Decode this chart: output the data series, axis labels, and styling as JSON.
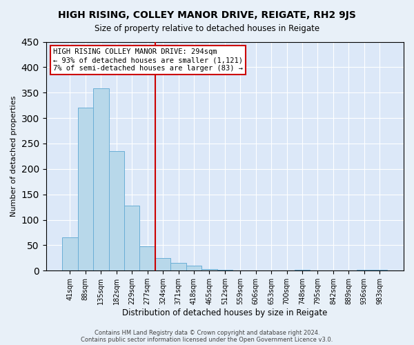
{
  "title": "HIGH RISING, COLLEY MANOR DRIVE, REIGATE, RH2 9JS",
  "subtitle": "Size of property relative to detached houses in Reigate",
  "xlabel": "Distribution of detached houses by size in Reigate",
  "ylabel": "Number of detached properties",
  "bar_labels": [
    "41sqm",
    "88sqm",
    "135sqm",
    "182sqm",
    "229sqm",
    "277sqm",
    "324sqm",
    "371sqm",
    "418sqm",
    "465sqm",
    "512sqm",
    "559sqm",
    "606sqm",
    "653sqm",
    "700sqm",
    "748sqm",
    "795sqm",
    "842sqm",
    "889sqm",
    "936sqm",
    "983sqm"
  ],
  "bar_values": [
    65,
    320,
    358,
    235,
    128,
    48,
    25,
    15,
    10,
    3,
    1,
    0,
    0,
    0,
    0,
    1,
    0,
    0,
    0,
    1,
    1
  ],
  "bar_color": "#b8d8ea",
  "bar_edge_color": "#6aaed6",
  "vline_x": 5.5,
  "vline_color": "#cc0000",
  "annotation_title": "HIGH RISING COLLEY MANOR DRIVE: 294sqm",
  "annotation_line1": "← 93% of detached houses are smaller (1,121)",
  "annotation_line2": "7% of semi-detached houses are larger (83) →",
  "annotation_box_edge": "#cc0000",
  "ylim": [
    0,
    450
  ],
  "yticks": [
    0,
    50,
    100,
    150,
    200,
    250,
    300,
    350,
    400,
    450
  ],
  "footer1": "Contains HM Land Registry data © Crown copyright and database right 2024.",
  "footer2": "Contains public sector information licensed under the Open Government Licence v3.0.",
  "bg_color": "#e8f0f8",
  "plot_bg_color": "#dce8f8"
}
